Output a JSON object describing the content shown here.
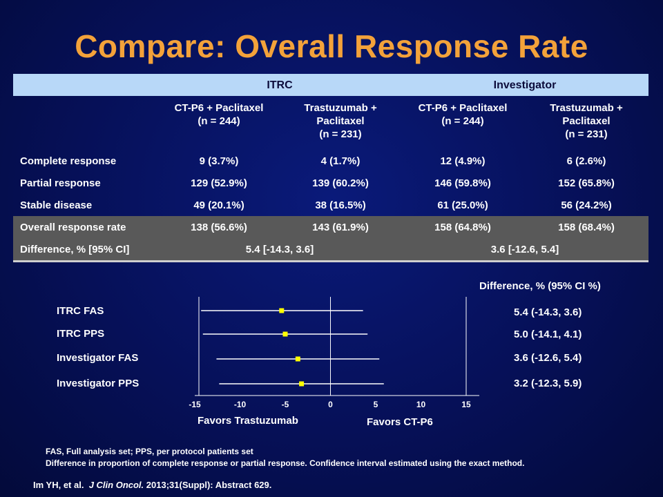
{
  "title": "Compare: Overall Response Rate",
  "table": {
    "groups": [
      "ITRC",
      "Investigator"
    ],
    "arm_headers": [
      [
        "CT-P6 + Paclitaxel",
        "(n = 244)"
      ],
      [
        "Trastuzumab +",
        "Paclitaxel",
        "(n = 231)"
      ],
      [
        "CT-P6 + Paclitaxel",
        "(n = 244)"
      ],
      [
        "Trastuzumab +",
        "Paclitaxel",
        "(n = 231)"
      ]
    ],
    "rows": [
      {
        "label": "Complete response",
        "values": [
          "9 (3.7%)",
          "4 (1.7%)",
          "12 (4.9%)",
          "6 (2.6%)"
        ]
      },
      {
        "label": "Partial response",
        "values": [
          "129 (52.9%)",
          "139 (60.2%)",
          "146 (59.8%)",
          "152 (65.8%)"
        ]
      },
      {
        "label": "Stable disease",
        "values": [
          "49 (20.1%)",
          "38 (16.5%)",
          "61 (25.0%)",
          "56 (24.2%)"
        ]
      },
      {
        "label": "Overall response rate",
        "values": [
          "138 (56.6%)",
          "143 (61.9%)",
          "158 (64.8%)",
          "158 (68.4%)"
        ]
      }
    ],
    "difference_row": {
      "label": "Difference, % [95% CI]",
      "itrc": "5.4 [-14.3, 3.6]",
      "investigator": "3.6 [-12.6, 5.4]"
    }
  },
  "forest": {
    "header": "Difference, % (95% CI %)",
    "rows": [
      {
        "label": "ITRC FAS",
        "ci_text": "5.4 (-14.3, 3.6)"
      },
      {
        "label": "ITRC PPS",
        "ci_text": "5.0 (-14.1, 4.1)"
      },
      {
        "label": "Investigator FAS",
        "ci_text": "3.6 (-12.6, 5.4)"
      },
      {
        "label": "Investigator PPS",
        "ci_text": "3.2 (-12.3, 5.9)"
      }
    ],
    "favors_left": "Favors Trastuzumab",
    "favors_right": "Favors CT-P6",
    "marker_color": "#ffff00"
  },
  "chart_data": {
    "type": "scatter",
    "title": "",
    "categories": [
      "ITRC FAS",
      "ITRC PPS",
      "Investigator FAS",
      "Investigator PPS"
    ],
    "series": [
      {
        "point": [
          -5.4,
          -5.0,
          -3.6,
          -3.2
        ],
        "lower": [
          -14.3,
          -14.1,
          -12.6,
          -12.3
        ],
        "upper": [
          3.6,
          4.1,
          5.4,
          5.9
        ]
      }
    ],
    "x_ticks": [
      "-15",
      "-10",
      "-5",
      "0",
      "5",
      "10",
      "15"
    ],
    "xlim": [
      -15,
      15
    ],
    "xlabel": "",
    "ylabel": "",
    "grid": false
  },
  "footnotes": {
    "line1": "FAS, Full analysis set; PPS, per protocol patients set",
    "line2": "Difference in proportion of complete response or partial response. Confidence interval estimated using the exact method."
  },
  "citation": {
    "authors": "Im YH, et al.",
    "journal": "J Clin Oncol.",
    "rest": "2013;31(Suppl): Abstract 629."
  }
}
